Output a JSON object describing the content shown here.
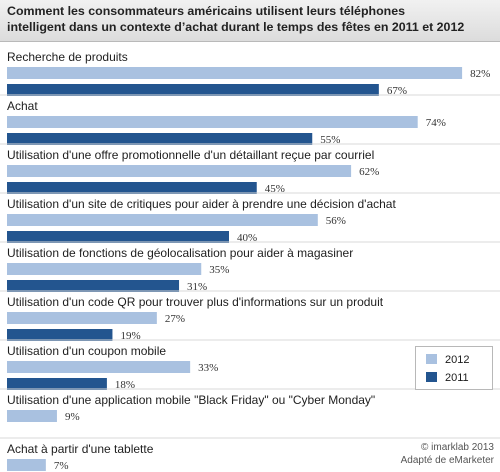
{
  "header": {
    "title_line1": "Comment les consommateurs américains utilisent leurs téléphones",
    "title_line2": "intelligent dans un contexte d’achat durant le temps des fêtes en 2011 et 2012"
  },
  "colors": {
    "series_2012": "#a9c1e0",
    "series_2011": "#23558f",
    "gridline": "#d9d9d9"
  },
  "chart_data": {
    "type": "bar",
    "orientation": "horizontal",
    "value_suffix": "%",
    "xlim": [
      0,
      100
    ],
    "categories": [
      "Recherche de produits",
      "Achat",
      "Utilisation d'une offre promotionnelle d'un détaillant reçue par courriel",
      "Utilisation d'un site de critiques pour aider à prendre une décision d'achat",
      "Utilisation de fonctions de géolocalisation pour aider à magasiner",
      "Utilisation d'un code QR pour trouver plus d'informations sur un produit",
      "Utilisation d'un coupon mobile",
      "Utilisation d'une application mobile \"Black Friday\" ou \"Cyber Monday\"",
      "Achat à partir d'une tablette"
    ],
    "series": [
      {
        "name": "2012",
        "values": [
          82,
          74,
          62,
          56,
          35,
          27,
          33,
          9,
          7
        ]
      },
      {
        "name": "2011",
        "values": [
          67,
          55,
          45,
          40,
          31,
          19,
          18,
          null,
          null
        ]
      }
    ],
    "legend_position": "right"
  },
  "credits": {
    "line1": "© imarklab 2013",
    "line2": "Adapté de eMarketer"
  }
}
